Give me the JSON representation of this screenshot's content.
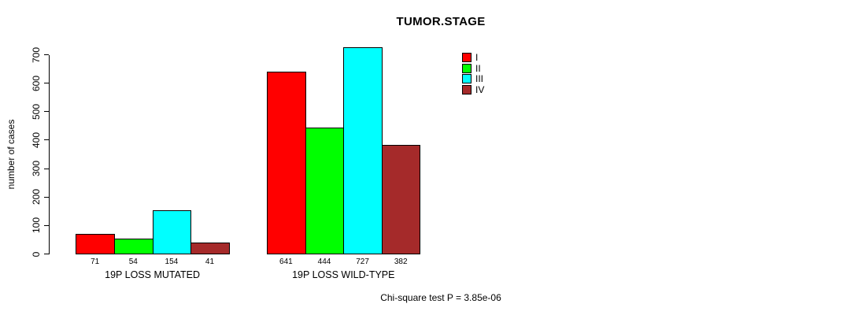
{
  "title": "TUMOR.STAGE",
  "footer": "Chi-square test P = 3.85e-06",
  "chart_data": {
    "type": "bar",
    "title": "TUMOR.STAGE",
    "xlabel": "",
    "ylabel": "number of cases",
    "ylim": [
      0,
      700
    ],
    "yticks": [
      0,
      100,
      200,
      300,
      400,
      500,
      600,
      700
    ],
    "grid": false,
    "legend_position": "top-right",
    "series": [
      "I",
      "II",
      "III",
      "IV"
    ],
    "colors": [
      "#FF0000",
      "#00FF00",
      "#00FFFF",
      "#A52A2A"
    ],
    "groups": [
      {
        "label": "19P LOSS MUTATED",
        "values": [
          71,
          54,
          154,
          41
        ]
      },
      {
        "label": "19P LOSS WILD-TYPE",
        "values": [
          641,
          444,
          727,
          382
        ]
      }
    ],
    "annotation": "Chi-square test P = 3.85e-06"
  }
}
